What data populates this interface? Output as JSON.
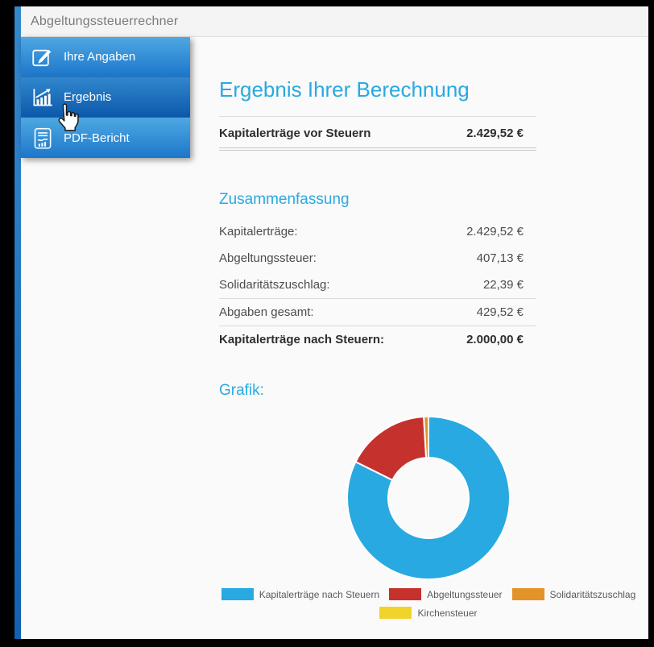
{
  "window": {
    "title": "Abgeltungssteuerrechner"
  },
  "sidebar": {
    "items": [
      {
        "label": "Ihre Angaben",
        "icon": "edit-icon",
        "active": false
      },
      {
        "label": "Ergebnis",
        "icon": "bar-chart-icon",
        "active": true
      },
      {
        "label": "PDF-Bericht",
        "icon": "report-icon",
        "active": false
      }
    ]
  },
  "main": {
    "title": "Ergebnis Ihrer Berechnung",
    "pretax": {
      "label": "Kapitalerträge vor Steuern",
      "value": "2.429,52 €"
    },
    "summary": {
      "heading": "Zusammenfassung",
      "rows": [
        {
          "label": "Kapitalerträge:",
          "value": "2.429,52 €"
        },
        {
          "label": "Abgeltungssteuer:",
          "value": "407,13 €"
        },
        {
          "label": "Solidaritätszuschlag:",
          "value": "22,39 €"
        },
        {
          "label": "Abgaben gesamt:",
          "value": "429,52 €"
        },
        {
          "label": "Kapitalerträge nach Steuern:",
          "value": "2.000,00 €"
        }
      ]
    },
    "chart_heading": "Grafik:"
  },
  "chart_data": {
    "type": "pie",
    "subtype": "donut",
    "labels": [
      "Kapitalerträge nach Steuern",
      "Abgeltungssteuer",
      "Solidaritätszuschlag",
      "Kirchensteuer"
    ],
    "values": [
      2000.0,
      407.13,
      22.39,
      0
    ],
    "colors": [
      "#29A9E1",
      "#C5312D",
      "#E39327",
      "#F2D32B"
    ],
    "total": 2429.52,
    "start_angle_deg": -90,
    "direction": "clockwise",
    "inner_radius_ratio": 0.49,
    "segment_gap_color": "#FFFFFF",
    "legend_position": "bottom"
  },
  "colors": {
    "accent_blue": "#29A9E1",
    "sidebar_gradient_top": "#4FA8E1",
    "sidebar_gradient_bottom": "#1C77CB",
    "sidebar_active_top": "#3187CD",
    "sidebar_active_bottom": "#0C59AB",
    "header_bg": "#F4F4F4",
    "content_bg": "#FAFAFA",
    "frame": "#000000"
  }
}
